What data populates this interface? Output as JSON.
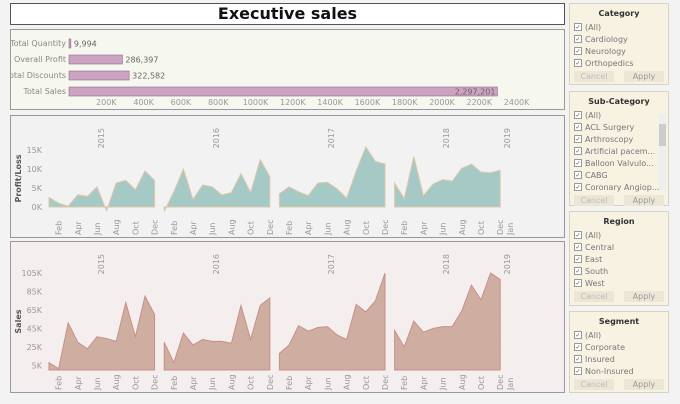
{
  "title": "Executive sales",
  "kpi": {
    "rows": [
      {
        "label": "Total Quantity",
        "value": 9994,
        "text": "9,994"
      },
      {
        "label": "Overall Profit",
        "value": 286397,
        "text": "286,397"
      },
      {
        "label": "Total Discounts",
        "value": 322582,
        "text": "322,582"
      },
      {
        "label": "Total Sales",
        "value": 2297201,
        "text": "2,297,201"
      }
    ],
    "ticks": [
      "200K",
      "400K",
      "600K",
      "800K",
      "1000K",
      "1200K",
      "1400K",
      "1600K",
      "1800K",
      "2000K",
      "2200K",
      "2400K"
    ],
    "bar_color": "#cda3c4"
  },
  "years": [
    "2015",
    "2016",
    "2017",
    "2018",
    "2019"
  ],
  "months": [
    "Feb",
    "Apr",
    "Jun",
    "Aug",
    "Oct",
    "Dec"
  ],
  "last_month": "Jan",
  "profit": {
    "ylabel": "Profit/Loss",
    "yticks": [
      "0K",
      "5K",
      "10K",
      "15K"
    ],
    "color": "#a5c9c5",
    "values": [
      [
        2.5,
        1,
        0.2,
        3.2,
        2.8,
        5.3,
        -1,
        6.3,
        7,
        4.5,
        9.5,
        7
      ],
      [
        -1.2,
        4,
        10,
        2,
        5.8,
        5.3,
        3.2,
        3.8,
        8.8,
        3.8,
        12.5,
        8
      ],
      [
        3.5,
        5.3,
        4,
        3,
        6.3,
        6.5,
        4.8,
        2.3,
        9.5,
        15.8,
        12,
        11.3
      ],
      [
        6.3,
        2.2,
        13.3,
        3,
        6,
        7.2,
        6.8,
        10.2,
        11.3,
        9.2,
        9,
        9.7
      ]
    ]
  },
  "sales": {
    "ylabel": "Sales",
    "yticks": [
      "5K",
      "25K",
      "45K",
      "65K",
      "85K",
      "105K"
    ],
    "color": "#cfaea2",
    "values": [
      [
        8,
        1.5,
        51,
        30,
        23,
        36,
        34,
        31,
        73,
        36,
        80,
        60
      ],
      [
        30,
        8,
        40,
        27,
        33,
        31,
        31,
        29,
        70,
        33,
        70,
        78
      ],
      [
        18,
        27,
        48,
        42,
        46,
        47,
        38,
        33,
        71,
        63,
        75,
        105
      ],
      [
        43,
        25,
        53,
        41,
        45,
        47,
        47,
        64,
        92,
        76,
        105,
        98
      ]
    ]
  },
  "filters": [
    {
      "title": "Category",
      "options": [
        "(All)",
        "Cardiology",
        "Neurology",
        "Orthopedics"
      ],
      "cancel": "Cancel",
      "apply": "Apply"
    },
    {
      "title": "Sub-Category",
      "options": [
        "(All)",
        "ACL Surgery",
        "Arthroscopy",
        "Artificial pacem...",
        "Balloon Valvulo...",
        "CABG",
        "Coronary Angiop..."
      ],
      "cancel": "Cancel",
      "apply": "Apply"
    },
    {
      "title": "Region",
      "options": [
        "(All)",
        "Central",
        "East",
        "South",
        "West"
      ],
      "cancel": "Cancel",
      "apply": "Apply"
    },
    {
      "title": "Segment",
      "options": [
        "(All)",
        "Corporate",
        "Insured",
        "Non-Insured"
      ],
      "cancel": "Cancel",
      "apply": "Apply"
    }
  ]
}
